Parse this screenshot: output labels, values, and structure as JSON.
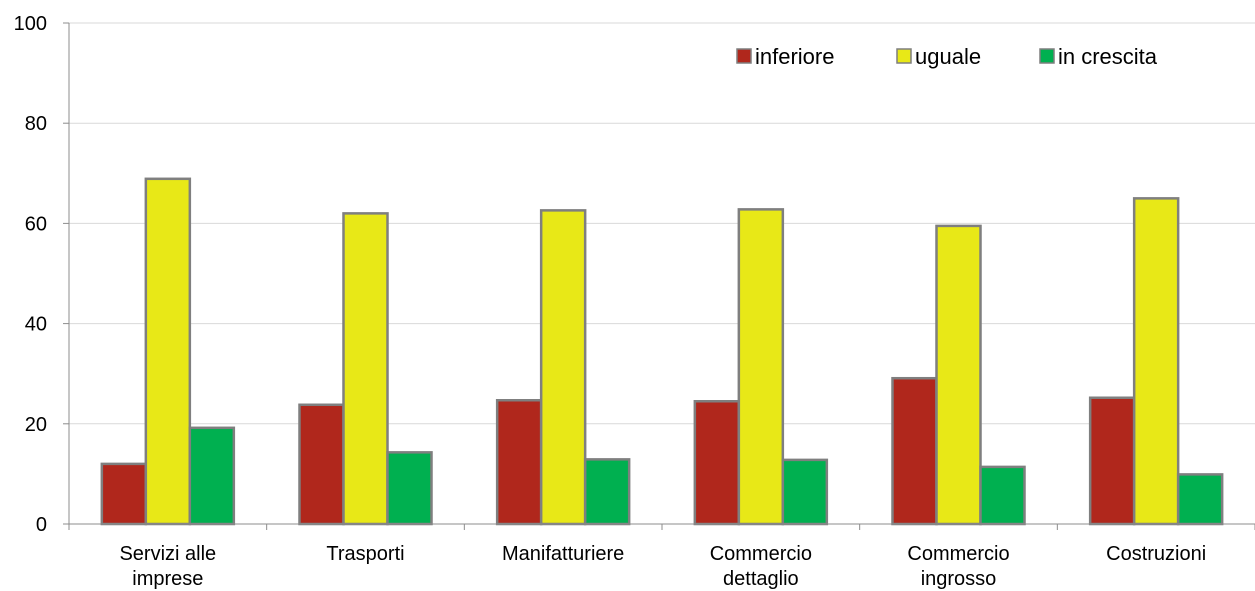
{
  "chart_data": {
    "type": "bar",
    "categories": [
      [
        "Servizi alle",
        "imprese"
      ],
      [
        "Trasporti"
      ],
      [
        "Manifatturiere"
      ],
      [
        "Commercio",
        "dettaglio"
      ],
      [
        "Commercio",
        "ingrosso"
      ],
      [
        "Costruzioni"
      ]
    ],
    "series": [
      {
        "name": "inferiore",
        "color": "#B0271C",
        "values": [
          12.0,
          23.8,
          24.7,
          24.5,
          29.1,
          25.2
        ]
      },
      {
        "name": "uguale",
        "color": "#E8E817",
        "values": [
          68.9,
          62.0,
          62.6,
          62.8,
          59.5,
          65.0
        ]
      },
      {
        "name": "in crescita",
        "color": "#00B050",
        "values": [
          19.2,
          14.3,
          12.9,
          12.8,
          11.4,
          9.9
        ]
      }
    ],
    "y_ticks": [
      "0",
      "20",
      "40",
      "60",
      "80",
      "100"
    ],
    "ylim": [
      0,
      100
    ],
    "grid": true,
    "legend_position": "top-right",
    "title": "",
    "xlabel": "",
    "ylabel": ""
  }
}
